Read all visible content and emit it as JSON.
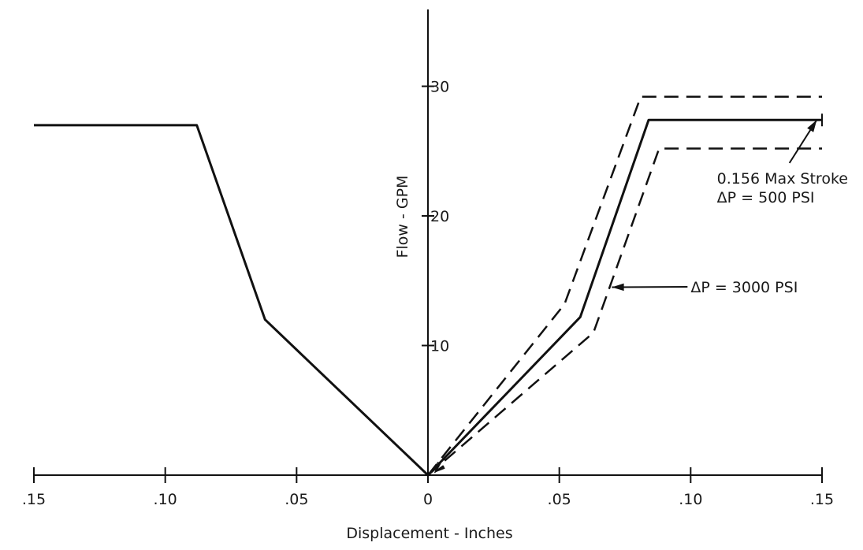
{
  "chart_data": {
    "type": "line",
    "title": "",
    "xlabel": "Displacement - Inches",
    "ylabel": "Flow - GPM",
    "xlim": [
      -0.15,
      0.15
    ],
    "ylim": [
      0,
      35
    ],
    "x_tick_labels": [
      ".15",
      ".10",
      ".05",
      "0",
      ".05",
      ".10",
      ".15"
    ],
    "x_tick_values": [
      -0.15,
      -0.1,
      -0.05,
      0,
      0.05,
      0.1,
      0.15
    ],
    "y_tick_labels": [
      "10",
      "20",
      "30"
    ],
    "y_tick_values": [
      10,
      20,
      30
    ],
    "grid": false,
    "series": [
      {
        "style": "solid",
        "x": [
          -0.15,
          -0.088,
          -0.062,
          0,
          0.058,
          0.084,
          0.15
        ],
        "y": [
          27,
          27,
          12,
          0,
          12.2,
          27.4,
          27.4
        ]
      },
      {
        "style": "dashed",
        "x": [
          0,
          0.052,
          0.081,
          0.15
        ],
        "y": [
          0,
          13.2,
          29.2,
          29.2
        ]
      },
      {
        "style": "dashed",
        "x": [
          0,
          0.063,
          0.088,
          0.15
        ],
        "y": [
          0,
          11,
          25.2,
          25.2
        ]
      }
    ],
    "annotations": [
      {
        "lines": [
          "0.156 Max Stroke",
          "ΔP = 500 PSI"
        ],
        "x": 0.11,
        "y": 22.5,
        "arrow_to": [
          0.148,
          27.4
        ]
      },
      {
        "lines": [
          "ΔP = 3000 PSI"
        ],
        "x": 0.1,
        "y": 14.1,
        "arrow_to": [
          0.07,
          14.5
        ]
      }
    ]
  }
}
